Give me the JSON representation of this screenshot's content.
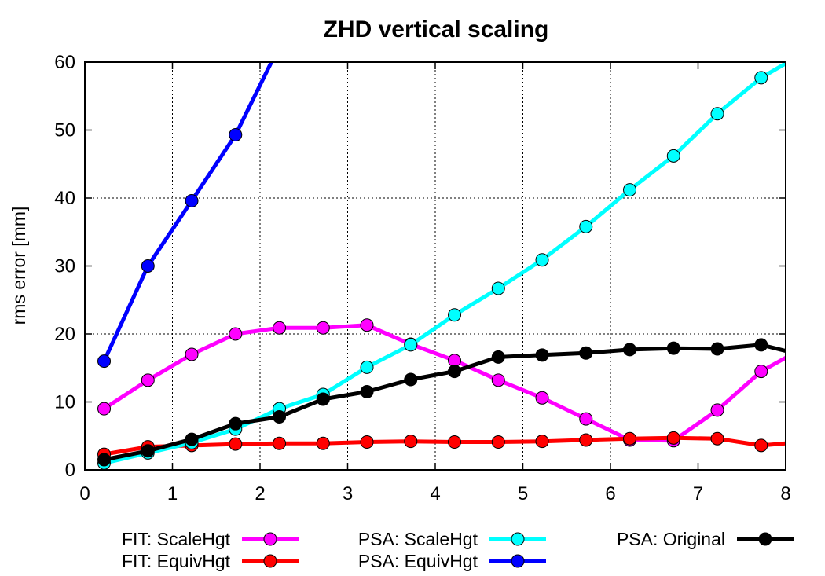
{
  "chart_data": {
    "type": "line",
    "title": "ZHD vertical scaling",
    "xlabel": "",
    "ylabel": "rms error [mm]",
    "xlim": [
      0,
      8
    ],
    "ylim": [
      0,
      60
    ],
    "xticks": [
      "0",
      "1",
      "2",
      "3",
      "4",
      "5",
      "6",
      "7",
      "8"
    ],
    "yticks": [
      "0",
      "10",
      "20",
      "30",
      "40",
      "50",
      "60"
    ],
    "grid": true,
    "legend_position": "bottom",
    "series": [
      {
        "name": "FIT: ScaleHgt",
        "color": "#ff00ff",
        "x": [
          0.22,
          0.72,
          1.22,
          1.72,
          2.22,
          2.72,
          3.22,
          3.72,
          4.22,
          4.72,
          5.22,
          5.72,
          6.22,
          6.72,
          7.22,
          7.72,
          8.0
        ],
        "y": [
          9.0,
          13.2,
          17.0,
          20.0,
          20.9,
          20.9,
          21.3,
          18.5,
          16.1,
          13.2,
          10.6,
          7.5,
          4.4,
          4.3,
          8.8,
          14.5,
          16.5
        ]
      },
      {
        "name": "FIT: EquivHgt",
        "color": "#ff0000",
        "x": [
          0.22,
          0.72,
          1.22,
          1.72,
          2.22,
          2.72,
          3.22,
          3.72,
          4.22,
          4.72,
          5.22,
          5.72,
          6.22,
          6.72,
          7.22,
          7.72,
          8.0
        ],
        "y": [
          2.3,
          3.4,
          3.6,
          3.8,
          3.9,
          3.9,
          4.1,
          4.2,
          4.1,
          4.1,
          4.2,
          4.4,
          4.6,
          4.7,
          4.6,
          3.6,
          3.9
        ]
      },
      {
        "name": "PSA: ScaleHgt",
        "color": "#00ffff",
        "x": [
          0.22,
          0.72,
          1.22,
          1.72,
          2.22,
          2.72,
          3.22,
          3.72,
          4.22,
          4.72,
          5.22,
          5.72,
          6.22,
          6.72,
          7.22,
          7.72,
          8.0
        ],
        "y": [
          1.0,
          2.5,
          4.0,
          6.0,
          9.0,
          11.1,
          15.1,
          18.4,
          22.8,
          26.7,
          30.9,
          35.8,
          41.2,
          46.2,
          52.4,
          57.7,
          59.8
        ]
      },
      {
        "name": "PSA: EquivHgt",
        "color": "#0000ff",
        "x": [
          0.22,
          0.72,
          1.22,
          1.72,
          2.13
        ],
        "y": [
          16.0,
          30.0,
          39.6,
          49.3,
          60.0
        ]
      },
      {
        "name": "PSA: Original",
        "color": "#000000",
        "x": [
          0.22,
          0.72,
          1.22,
          1.72,
          2.22,
          2.72,
          3.22,
          3.72,
          4.22,
          4.72,
          5.22,
          5.72,
          6.22,
          6.72,
          7.22,
          7.72,
          8.0
        ],
        "y": [
          1.5,
          2.8,
          4.5,
          6.8,
          7.8,
          10.4,
          11.5,
          13.3,
          14.5,
          16.6,
          16.9,
          17.2,
          17.7,
          17.9,
          17.8,
          18.4,
          17.5
        ]
      }
    ]
  }
}
